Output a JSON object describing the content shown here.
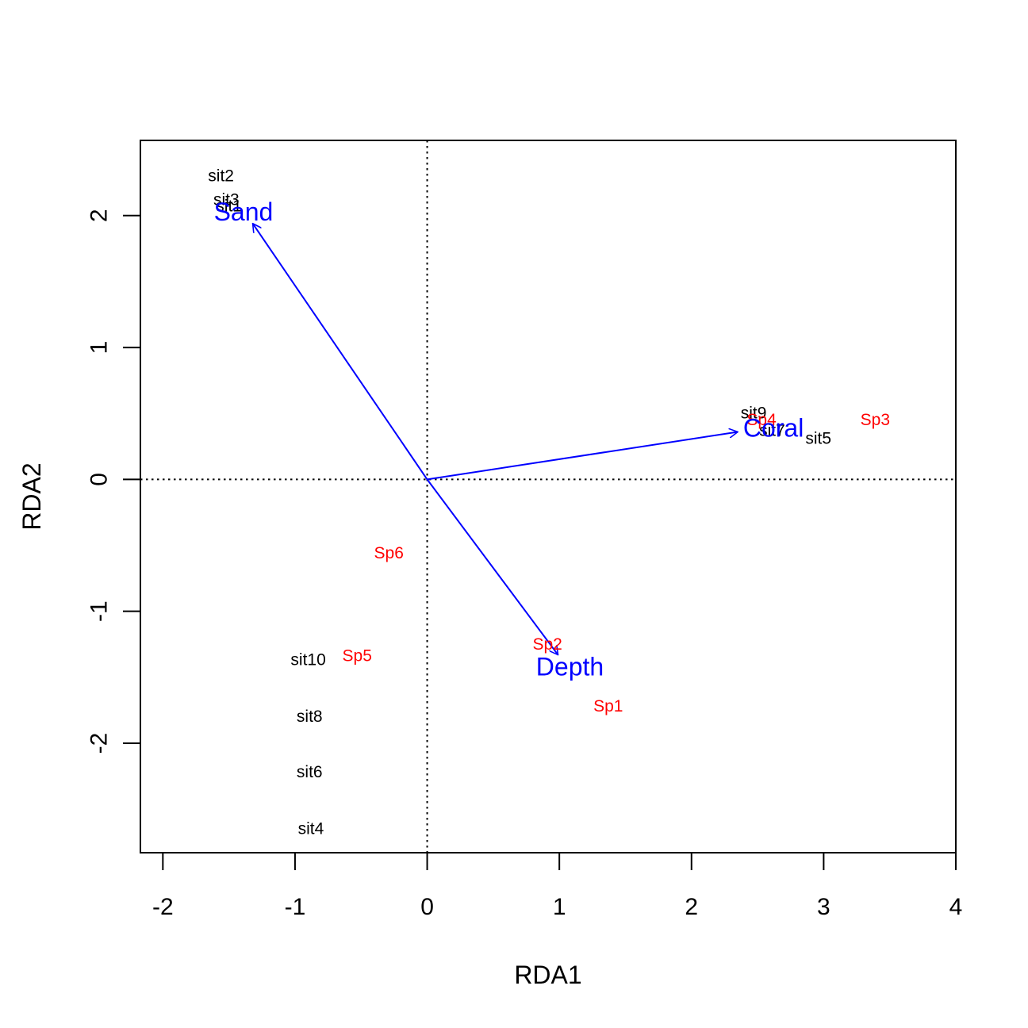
{
  "chart_data": {
    "type": "scatter",
    "title": "",
    "xlabel": "RDA1",
    "ylabel": "RDA2",
    "xlim": [
      -2.17,
      4.0
    ],
    "ylim": [
      -2.83,
      2.57
    ],
    "xticks": [
      -2,
      -1,
      0,
      1,
      2,
      3,
      4
    ],
    "yticks": [
      -2,
      -1,
      0,
      1,
      2
    ],
    "xtick_labels": [
      "-2",
      "-1",
      "0",
      "1",
      "2",
      "3",
      "4"
    ],
    "ytick_labels": [
      "-2",
      "-1",
      "0",
      "1",
      "2"
    ],
    "grid": false,
    "reference_lines": {
      "x": 0,
      "y": 0,
      "style": "dotted"
    },
    "colors": {
      "sites": "#000000",
      "species": "#ff0000",
      "biplot": "#0000ff",
      "axes": "#000000"
    },
    "sites": [
      {
        "label": "sit1",
        "x": -1.5,
        "y": 2.07
      },
      {
        "label": "sit2",
        "x": -1.56,
        "y": 2.3
      },
      {
        "label": "sit3",
        "x": -1.52,
        "y": 2.12
      },
      {
        "label": "sit4",
        "x": -0.88,
        "y": -2.65
      },
      {
        "label": "sit5",
        "x": 2.96,
        "y": 0.31
      },
      {
        "label": "sit6",
        "x": -0.89,
        "y": -2.22
      },
      {
        "label": "sit7",
        "x": 2.61,
        "y": 0.37
      },
      {
        "label": "sit8",
        "x": -0.89,
        "y": -1.8
      },
      {
        "label": "sit9",
        "x": 2.47,
        "y": 0.5
      },
      {
        "label": "sit10",
        "x": -0.9,
        "y": -1.37
      }
    ],
    "species": [
      {
        "label": "Sp1",
        "x": 1.37,
        "y": -1.72
      },
      {
        "label": "Sp2",
        "x": 0.91,
        "y": -1.25
      },
      {
        "label": "Sp3",
        "x": 3.39,
        "y": 0.45
      },
      {
        "label": "Sp4",
        "x": 2.53,
        "y": 0.45
      },
      {
        "label": "Sp5",
        "x": -0.53,
        "y": -1.34
      },
      {
        "label": "Sp6",
        "x": -0.29,
        "y": -0.56
      }
    ],
    "biplot_arrows": [
      {
        "label": "Sand",
        "x": -1.32,
        "y": 1.94,
        "label_x": -1.39,
        "label_y": 2.03
      },
      {
        "label": "Coral",
        "x": 2.35,
        "y": 0.36,
        "label_x": 2.62,
        "label_y": 0.39
      },
      {
        "label": "Depth",
        "x": 0.99,
        "y": -1.33,
        "label_x": 1.08,
        "label_y": -1.42
      }
    ]
  }
}
